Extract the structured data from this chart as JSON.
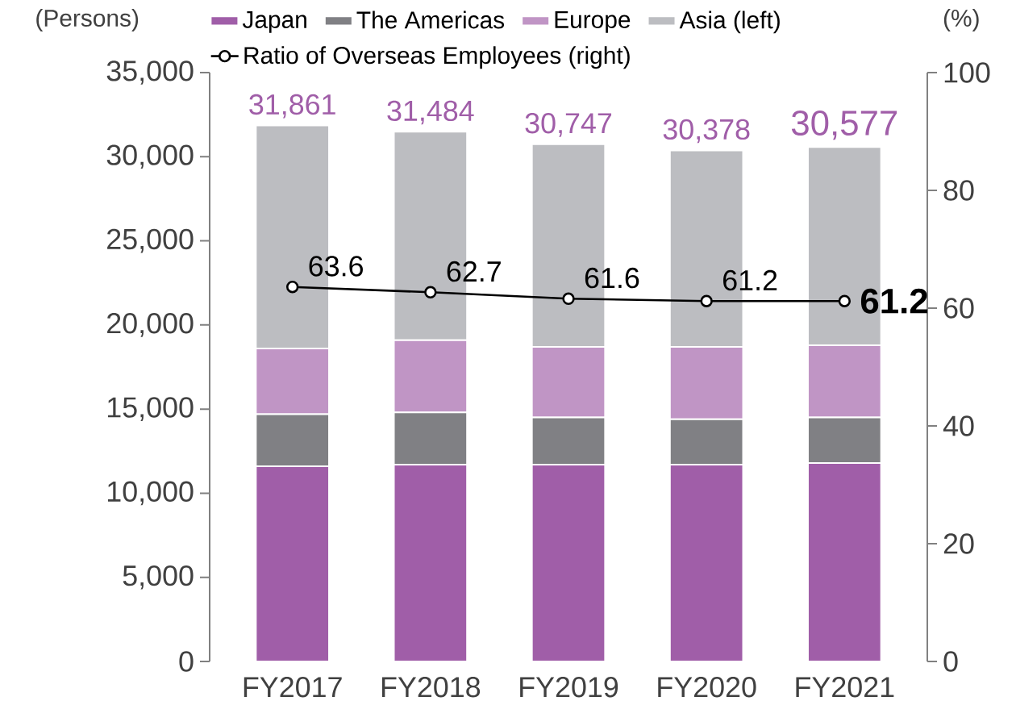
{
  "chart_data": {
    "type": "bar",
    "stacked": true,
    "legend": "top",
    "ylabel": "(Persons)",
    "y2label": "(%)",
    "categories": [
      "FY2017",
      "FY2018",
      "FY2019",
      "FY2020",
      "FY2021"
    ],
    "series": [
      {
        "name": "Japan",
        "color": "#a05ea8",
        "values": [
          11600,
          11700,
          11700,
          11700,
          11800
        ]
      },
      {
        "name": "The Americas",
        "color": "#808084",
        "values": [
          3100,
          3100,
          2800,
          2700,
          2700
        ]
      },
      {
        "name": "Europe",
        "color": "#c095c5",
        "values": [
          3900,
          4300,
          4200,
          4300,
          4300
        ]
      },
      {
        "name": "Asia (left)",
        "color": "#bcbdc1",
        "values": [
          13261,
          12384,
          12047,
          11678,
          11777
        ]
      },
      {
        "name": "Ratio of Overseas Employees (right)",
        "type": "line",
        "axis": "y2",
        "color": "#000000",
        "marker": "circle",
        "values": [
          63.6,
          62.7,
          61.6,
          61.2,
          61.2
        ],
        "value_labels": [
          "63.6",
          "62.7",
          "61.6",
          "61.2",
          "61.2"
        ]
      }
    ],
    "totals": [
      "31,861",
      "31,484",
      "30,747",
      "30,378",
      "30,577"
    ],
    "ylim": [
      0,
      35000
    ],
    "yticks": [
      {
        "value": 0,
        "label": "0"
      },
      {
        "value": 5000,
        "label": "5,000"
      },
      {
        "value": 10000,
        "label": "10,000"
      },
      {
        "value": 15000,
        "label": "15,000"
      },
      {
        "value": 20000,
        "label": "20,000"
      },
      {
        "value": 25000,
        "label": "25,000"
      },
      {
        "value": 30000,
        "label": "30,000"
      },
      {
        "value": 35000,
        "label": "35,000"
      }
    ],
    "y2lim": [
      0,
      100
    ],
    "y2ticks": [
      0,
      20,
      40,
      60,
      80,
      100
    ]
  }
}
